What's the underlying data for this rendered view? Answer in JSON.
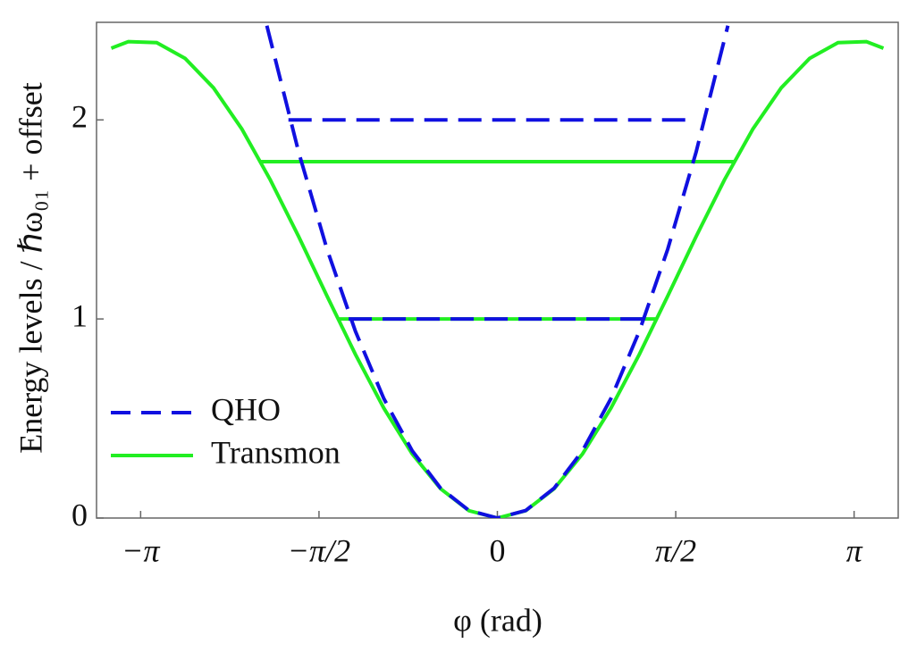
{
  "chart_data": {
    "type": "line",
    "xlabel": "φ (rad)",
    "ylabel": "Energy levels / ℏω₀₁ + offset",
    "xlim": [
      -3.53,
      3.53
    ],
    "ylim": [
      0,
      2.49
    ],
    "xticks": [
      {
        "value": -3.14159,
        "label": "−π"
      },
      {
        "value": -1.5708,
        "label": "−π/2"
      },
      0,
      {
        "value": 1.5708,
        "label": "π/2"
      },
      {
        "value": 3.14159,
        "label": "π"
      }
    ],
    "yticks": [
      0,
      1,
      2
    ],
    "legend": "center left",
    "series": [
      {
        "name": "QHO",
        "color": "#1010e0",
        "dashed": true,
        "x": [
          -2.03,
          -1.75,
          -1.5,
          -1.25,
          -1,
          -0.75,
          -0.5,
          -0.25,
          0,
          0.25,
          0.5,
          0.75,
          1,
          1.25,
          1.5,
          1.75,
          2.03
        ],
        "values": [
          2.473,
          1.838,
          1.35,
          0.938,
          0.6,
          0.338,
          0.15,
          0.038,
          0,
          0.038,
          0.15,
          0.338,
          0.6,
          0.938,
          1.35,
          1.838,
          2.473
        ],
        "levels": [
          {
            "x": [
              -1.31,
              1.31
            ],
            "values": [
              1,
              1
            ]
          },
          {
            "x": [
              -1.84,
              1.72
            ],
            "values": [
              2,
              2
            ]
          }
        ]
      },
      {
        "name": "Transmon",
        "color": "#22ee22",
        "dashed": false,
        "x": [
          -3.4,
          -3.25,
          -3,
          -2.75,
          -2.5,
          -2.25,
          -2,
          -1.75,
          -1.5,
          -1.25,
          -1,
          -0.75,
          -0.5,
          -0.25,
          0,
          0.25,
          0.5,
          0.75,
          1,
          1.25,
          1.5,
          1.75,
          2,
          2.25,
          2.5,
          2.75,
          3,
          3.25,
          3.4
        ],
        "values": [
          2.36,
          2.393,
          2.388,
          2.309,
          2.161,
          1.954,
          1.699,
          1.414,
          1.115,
          0.822,
          0.552,
          0.322,
          0.147,
          0.037,
          0,
          0.037,
          0.147,
          0.322,
          0.552,
          0.822,
          1.115,
          1.414,
          1.699,
          1.954,
          2.161,
          2.309,
          2.388,
          2.393,
          2.36
        ],
        "levels": [
          {
            "x": [
              -1.41,
              1.4
            ],
            "values": [
              1,
              1
            ]
          },
          {
            "x": [
              -2.09,
              2.09
            ],
            "values": [
              1.79,
              1.79
            ]
          }
        ]
      }
    ]
  }
}
